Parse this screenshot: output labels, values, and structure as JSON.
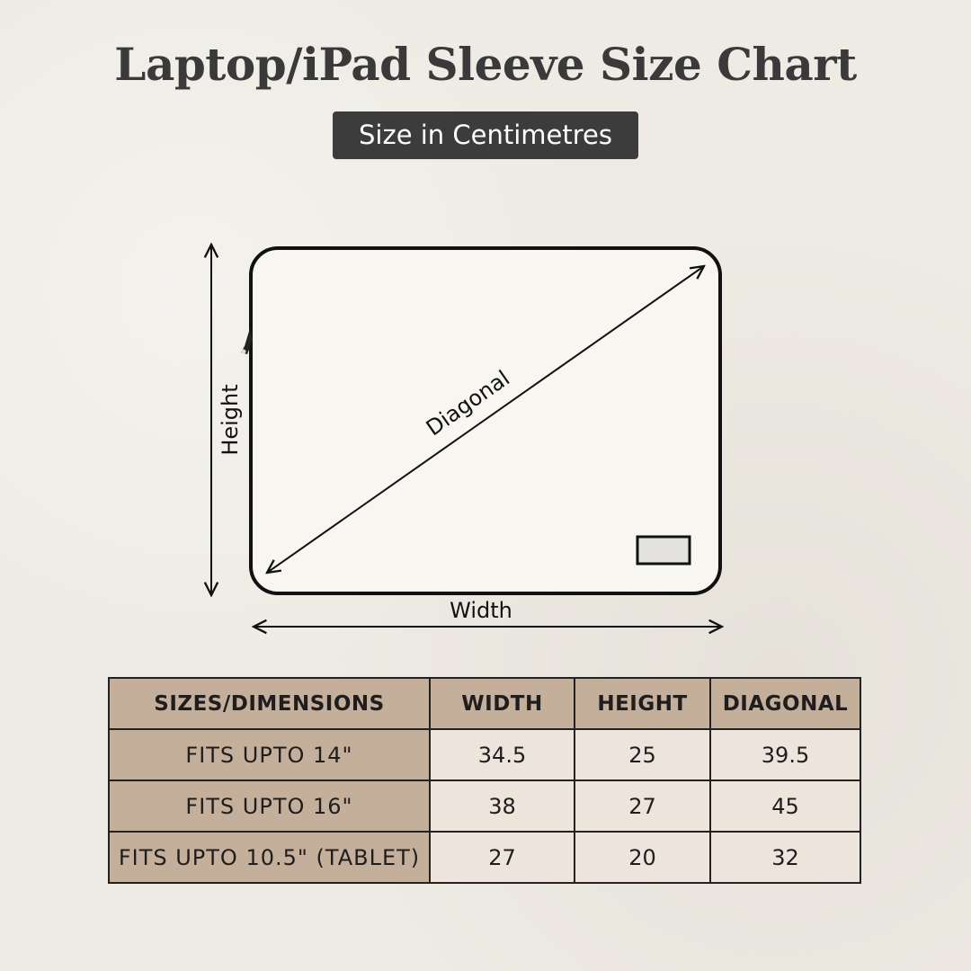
{
  "title": "Laptop/iPad Sleeve Size Chart",
  "subtitle": "Size in Centimetres",
  "diagram": {
    "labels": {
      "height": "Height",
      "width": "Width",
      "diagonal": "Diagonal"
    }
  },
  "colors": {
    "header_bg": "#c4b09a",
    "cell_bg": "#ede5dc",
    "badge_bg": "#3c3c3c",
    "background": "#eeebe4"
  },
  "table": {
    "headers": [
      "SIZES/DIMENSIONS",
      "WIDTH",
      "HEIGHT",
      "DIAGONAL"
    ],
    "rows": [
      [
        "FITS UPTO 14\"",
        "34.5",
        "25",
        "39.5"
      ],
      [
        "FITS UPTO 16\"",
        "38",
        "27",
        "45"
      ],
      [
        "FITS UPTO 10.5\" (TABLET)",
        "27",
        "20",
        "32"
      ]
    ]
  }
}
